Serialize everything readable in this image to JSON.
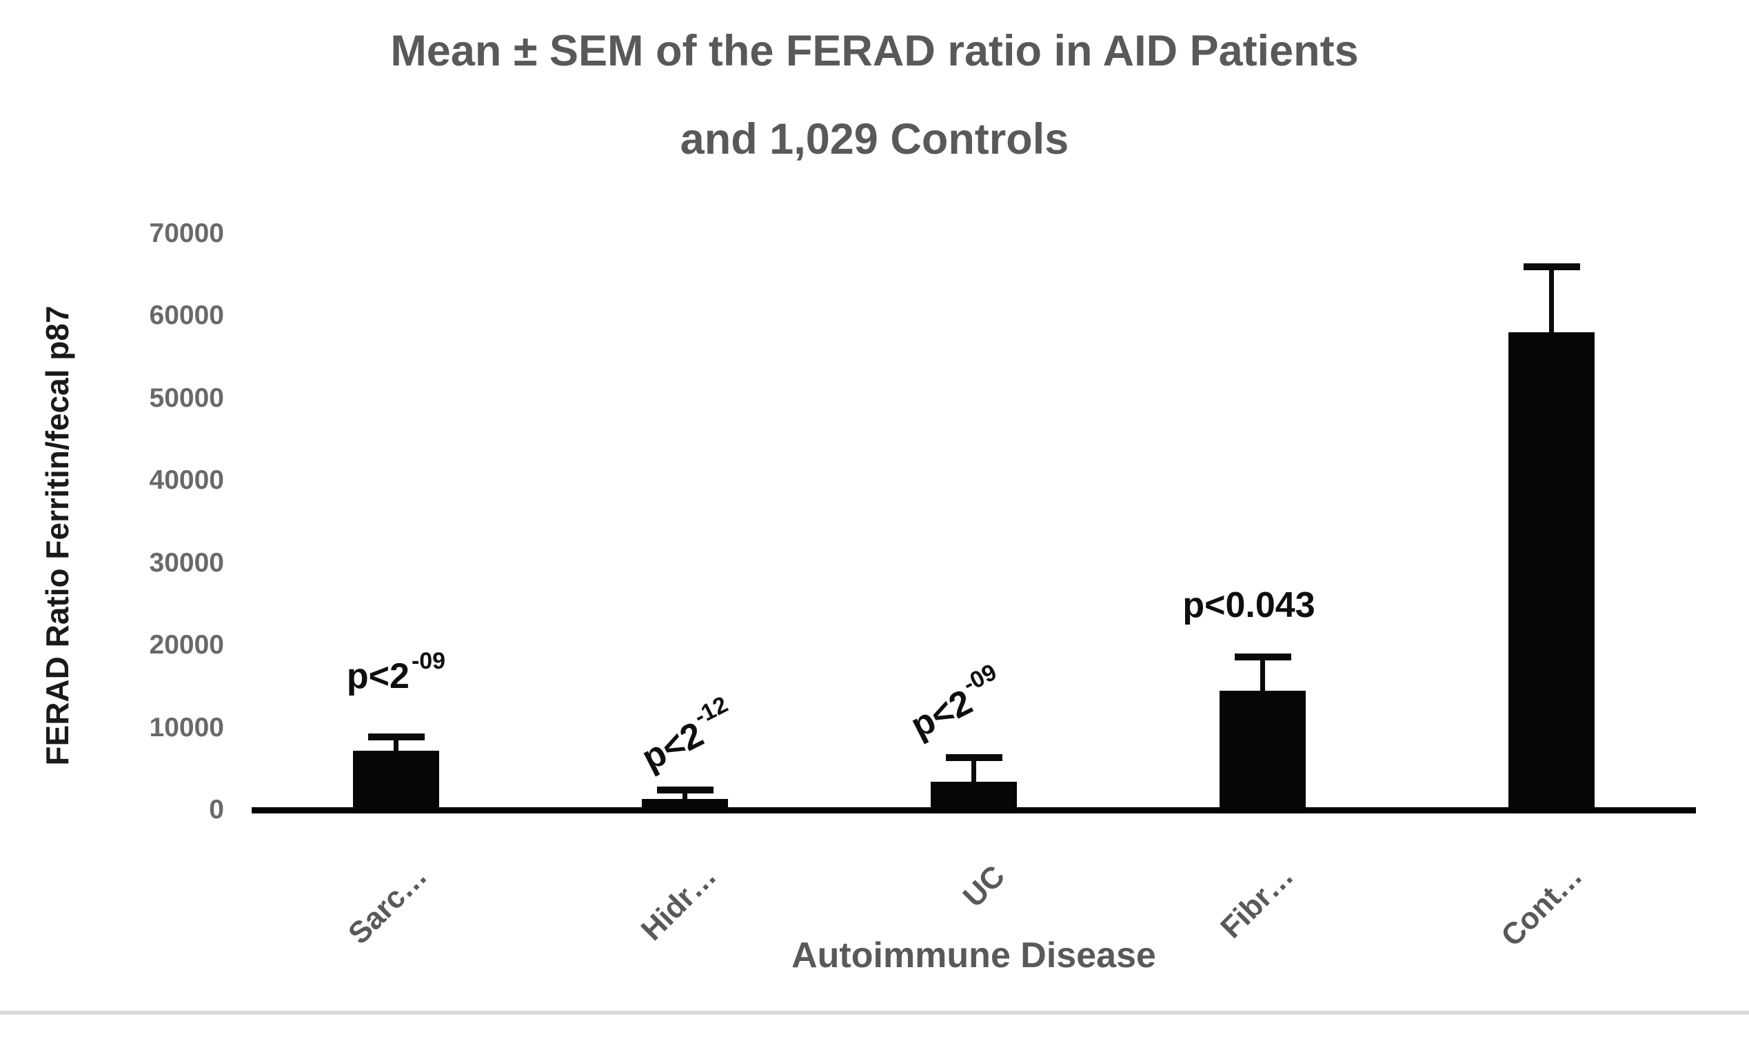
{
  "page": {
    "background": "#ffffff",
    "divider_color": "#d9d9d9"
  },
  "chart": {
    "title_line1": "Mean ± SEM of the FERAD ratio in AID Patients",
    "title_line2": "and 1,029 Controls",
    "y_axis_title": "FERAD Ratio Ferritin/fecal p87",
    "x_axis_title": "Autoimmune Disease",
    "colors": {
      "bar": "#060606",
      "axis_line": "#000000",
      "title_text": "#595959",
      "tick_text": "#696969",
      "y_title_text": "#1a1a1a",
      "annotation_text": "#0f0f0f"
    }
  },
  "chart_data": {
    "type": "bar",
    "title": "Mean ± SEM of the FERAD ratio in AID Patients and 1,029 Controls",
    "xlabel": "Autoimmune Disease",
    "ylabel": "FERAD Ratio Ferritin/fecal p87",
    "categories": [
      "Sarc…",
      "Hidr…",
      "UC",
      "Fibr…",
      "Cont…"
    ],
    "series": [
      {
        "name": "Mean FERAD ratio (Ferritin/fecal p87)",
        "values": [
          7200,
          1300,
          3400,
          14500,
          58000
        ]
      }
    ],
    "error_sem_upper": [
      1700,
      1100,
      3000,
      4100,
      8000
    ],
    "annotations": [
      {
        "prefix": "p<2",
        "sup": "-09",
        "rotation_deg": 0
      },
      {
        "prefix": "p<2",
        "sup": "-12",
        "rotation_deg": -27
      },
      {
        "prefix": "p<2",
        "sup": "-09",
        "rotation_deg": -27
      },
      {
        "prefix": "p<0.043",
        "sup": "",
        "rotation_deg": 0
      },
      null
    ],
    "ylim": [
      0,
      70000
    ],
    "yticks": [
      0,
      10000,
      20000,
      30000,
      40000,
      50000,
      60000,
      70000
    ],
    "grid": false,
    "legend": "none",
    "bar_color": "#060606"
  }
}
